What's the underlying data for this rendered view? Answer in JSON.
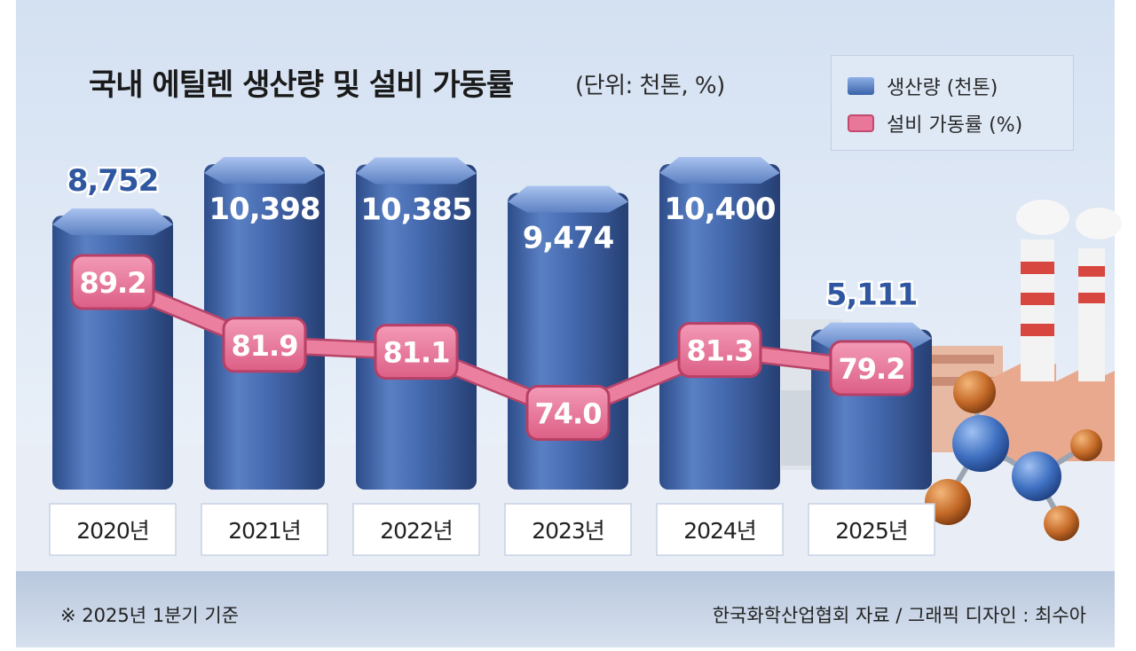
{
  "header": {
    "title": "국내 에틸렌 생산량 및 설비 가동률",
    "unit": "(단위: 천톤, %)"
  },
  "legend": {
    "production": "생산량 (천톤)",
    "utilization": "설비 가동률 (%)"
  },
  "footer": {
    "note": "※ 2025년 1분기 기준",
    "source": "한국화학산업협회 자료 / 그래픽 디자인 : 최수아"
  },
  "colors": {
    "bar_top": "#8fb0e6",
    "bar_mid": "#4a72b8",
    "bar_dark": "#2e4f8d",
    "rate_box": "#ea7d9f",
    "rate_border": "#c24a6f",
    "rate_line": "#e56e92",
    "background_top": "#dbe6f4",
    "background_bottom": "#eef3f9"
  },
  "icons": [
    "factory-illustration",
    "molecule-illustration"
  ],
  "chart_data": {
    "type": "bar",
    "title": "국내 에틸렌 생산량 및 설비 가동률",
    "categories": [
      "2020년",
      "2021년",
      "2022년",
      "2023년",
      "2024년",
      "2025년"
    ],
    "series": [
      {
        "name": "생산량 (천톤)",
        "type": "bar",
        "values": [
          8752,
          10398,
          10385,
          9474,
          10400,
          5111
        ],
        "labels": [
          "8,752",
          "10,398",
          "10,385",
          "9,474",
          "10,400",
          "5,111"
        ]
      },
      {
        "name": "설비 가동률 (%)",
        "type": "line",
        "values": [
          89.2,
          81.9,
          81.1,
          74.0,
          81.3,
          79.2
        ],
        "labels": [
          "89.2",
          "81.9",
          "81.1",
          "74.0",
          "81.3",
          "79.2"
        ]
      }
    ],
    "grid": false,
    "legend_position": "top-right"
  }
}
